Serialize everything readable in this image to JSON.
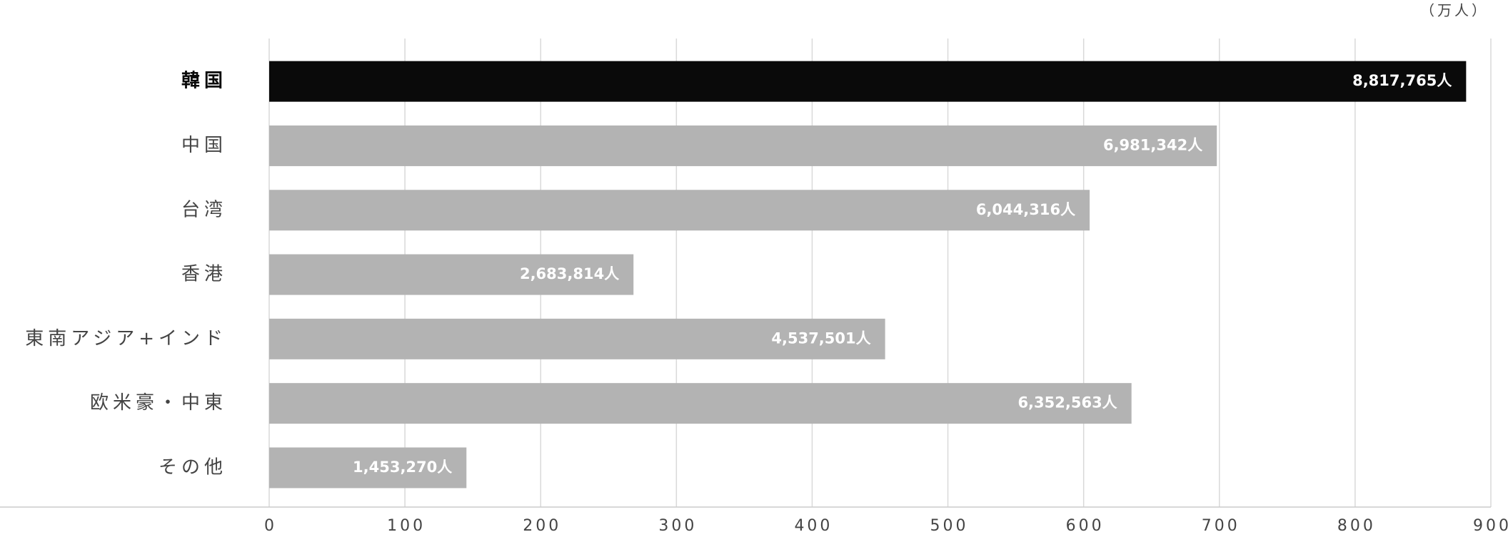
{
  "chart_data": {
    "type": "hbar",
    "unit_label": "（万人）",
    "categories": [
      "韓国",
      "中国",
      "台湾",
      "香港",
      "東南アジア+インド",
      "欧米豪・中東",
      "その他"
    ],
    "values": [
      881.7765,
      698.1342,
      604.4316,
      268.3814,
      453.7501,
      635.2563,
      145.327
    ],
    "value_labels": [
      "8,817,765人",
      "6,981,342人",
      "6,044,316人",
      "2,683,814人",
      "4,537,501人",
      "6,352,563人",
      "1,453,270人"
    ],
    "colors": [
      "#0a0a0a",
      "#b3b3b3",
      "#b3b3b3",
      "#b3b3b3",
      "#b3b3b3",
      "#b3b3b3",
      "#b3b3b3"
    ],
    "xlim": [
      0,
      900
    ],
    "xticks": [
      0,
      100,
      200,
      300,
      400,
      500,
      600,
      700,
      800,
      900
    ],
    "grid": true
  }
}
